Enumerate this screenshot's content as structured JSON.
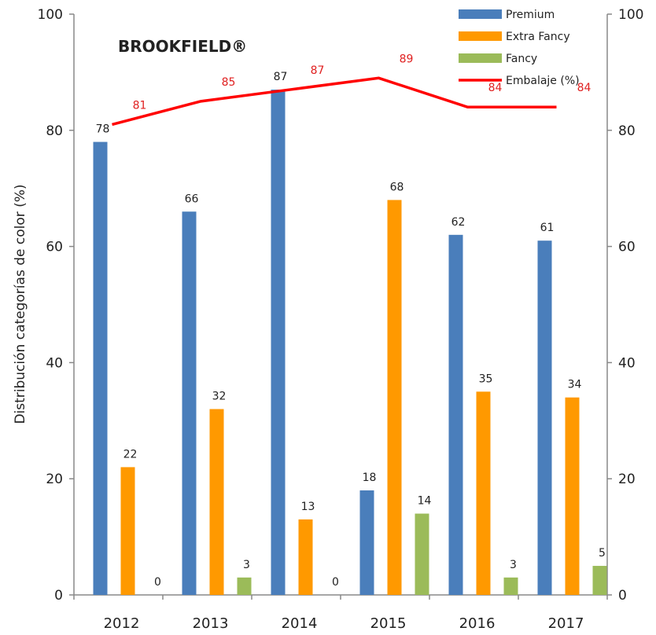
{
  "chart_data": {
    "type": "bar",
    "title": "BROOKFIELD®",
    "ylabel": "Distribución categorías de color (%)",
    "xlabel": "",
    "categories": [
      "2012",
      "2013",
      "2014",
      "2015",
      "2016",
      "2017"
    ],
    "ylim": [
      0,
      100
    ],
    "y2lim": [
      0,
      100
    ],
    "yticks": [
      "0",
      "20",
      "40",
      "60",
      "80",
      "100"
    ],
    "series": [
      {
        "name": "Premium",
        "type": "bar",
        "color": "#4a7ebb",
        "values": [
          78,
          66,
          87,
          18,
          62,
          61
        ]
      },
      {
        "name": "Extra Fancy",
        "type": "bar",
        "color": "#ff9900",
        "values": [
          22,
          32,
          13,
          68,
          35,
          34
        ]
      },
      {
        "name": "Fancy",
        "type": "bar",
        "color": "#9bbb59",
        "values": [
          0,
          3,
          0,
          14,
          3,
          5
        ]
      },
      {
        "name": "Embalaje (%)",
        "type": "line",
        "axis": "right",
        "color": "#ff0000",
        "values": [
          81,
          85,
          87,
          89,
          84,
          84
        ]
      }
    ],
    "legend_position": "top-right",
    "grid": false
  }
}
